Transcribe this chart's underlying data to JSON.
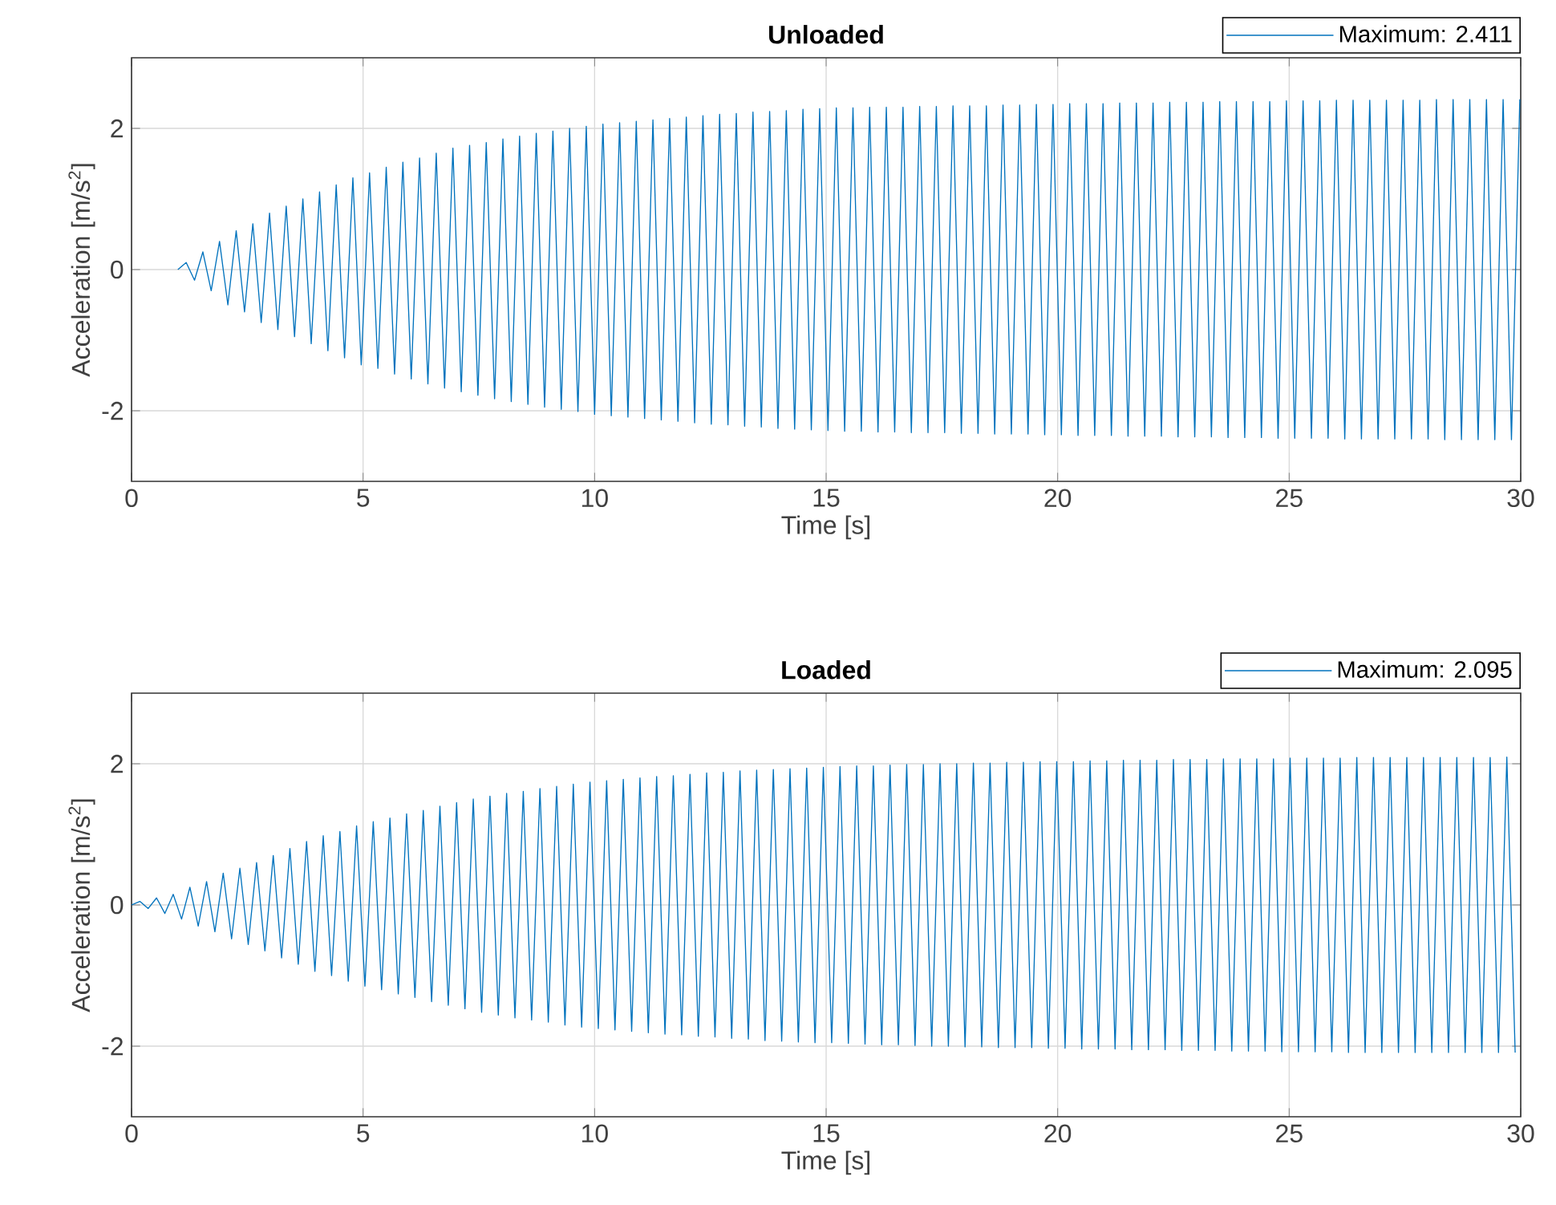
{
  "chart_data": [
    {
      "type": "line",
      "title": "Unloaded",
      "xlabel": "Time [s]",
      "ylabel": "Acceleration [m/s$^{2}$]",
      "xlim": [
        0,
        30
      ],
      "ylim": [
        -3,
        3
      ],
      "xticks": [
        0,
        5,
        10,
        15,
        20,
        25,
        30
      ],
      "yticks": [
        -2,
        0,
        2
      ],
      "grid": true,
      "legend": "top right",
      "line_style": "solid",
      "series": [
        {
          "name": "Maximum: 2.411",
          "color": "#0072bd",
          "x": [
            1,
            1.18,
            1.36,
            1.54,
            1.72,
            1.9,
            2.08,
            2.26,
            2.44,
            2.62,
            2.8,
            2.98,
            3.16,
            3.34,
            3.52,
            3.7,
            3.88,
            4.06,
            4.24,
            4.42,
            4.6,
            4.78,
            4.96,
            5.14,
            5.32,
            5.5,
            5.68,
            5.86,
            6.04,
            6.22,
            6.4,
            6.58,
            6.76,
            6.94,
            7.12,
            7.3,
            7.48,
            7.66,
            7.84,
            8.02,
            8.2,
            8.38,
            8.56,
            8.74,
            8.92,
            9.1,
            9.28,
            9.46,
            9.64,
            9.82,
            10,
            10.18,
            10.36,
            10.54,
            10.72,
            10.9,
            11.08,
            11.26,
            11.44,
            11.62,
            11.8,
            11.98,
            12.16,
            12.34,
            12.52,
            12.7,
            12.88,
            13.06,
            13.24,
            13.42,
            13.6,
            13.78,
            13.96,
            14.14,
            14.32,
            14.5,
            14.68,
            14.86,
            15.04,
            15.22,
            15.4,
            15.58,
            15.76,
            15.94,
            16.12,
            16.3,
            16.48,
            16.66,
            16.84,
            17.02,
            17.2,
            17.38,
            17.56,
            17.74,
            17.92,
            18.1,
            18.28,
            18.46,
            18.64,
            18.82,
            19,
            19.18,
            19.36,
            19.54,
            19.72,
            19.9,
            20.08,
            20.26,
            20.44,
            20.62,
            20.8,
            20.98,
            21.16,
            21.34,
            21.52,
            21.7,
            21.88,
            22.06,
            22.24,
            22.42,
            22.6,
            22.78,
            22.96,
            23.14,
            23.32,
            23.5,
            23.68,
            23.86,
            24.04,
            24.22,
            24.4,
            24.58,
            24.76,
            24.94,
            25.12,
            25.3,
            25.48,
            25.66,
            25.84,
            26.02,
            26.2,
            26.38,
            26.56,
            26.74,
            26.92,
            27.1,
            27.28,
            27.46,
            27.64,
            27.82,
            28,
            28.18,
            28.36,
            28.54,
            28.72,
            28.9,
            29.08,
            29.26,
            29.44,
            29.62,
            29.8,
            29.98
          ],
          "values": [
            0,
            0.1,
            -0.15,
            0.25,
            -0.3,
            0.4,
            -0.5,
            0.55,
            -0.6,
            0.65,
            -0.75,
            0.8,
            -0.85,
            0.9,
            -0.95,
            1,
            -1.05,
            1.1,
            -1.15,
            1.2,
            -1.25,
            1.3,
            -1.35,
            1.37,
            -1.4,
            1.45,
            -1.48,
            1.52,
            -1.55,
            1.58,
            -1.62,
            1.65,
            -1.68,
            1.72,
            -1.73,
            1.76,
            -1.78,
            1.8,
            -1.83,
            1.85,
            -1.87,
            1.89,
            -1.91,
            1.93,
            -1.95,
            1.96,
            -1.98,
            2,
            -2.01,
            2.03,
            -2.05,
            2.06,
            -2.07,
            2.08,
            -2.09,
            2.1,
            -2.11,
            2.12,
            -2.13,
            2.14,
            -2.15,
            2.16,
            -2.17,
            2.18,
            -2.19,
            2.2,
            -2.2,
            2.21,
            -2.22,
            2.23,
            -2.23,
            2.24,
            -2.25,
            2.25,
            -2.26,
            2.27,
            -2.27,
            2.28,
            -2.28,
            2.29,
            -2.29,
            2.29,
            -2.29,
            2.3,
            -2.3,
            2.3,
            -2.3,
            2.3,
            -2.31,
            2.31,
            -2.31,
            2.31,
            -2.31,
            2.32,
            -2.32,
            2.32,
            -2.32,
            2.32,
            -2.33,
            2.33,
            -2.33,
            2.33,
            -2.33,
            2.34,
            -2.34,
            2.34,
            -2.34,
            2.35,
            -2.35,
            2.35,
            -2.35,
            2.35,
            -2.35,
            2.36,
            -2.36,
            2.36,
            -2.36,
            2.36,
            -2.36,
            2.37,
            -2.37,
            2.37,
            -2.37,
            2.37,
            -2.37,
            2.38,
            -2.38,
            2.38,
            -2.38,
            2.38,
            -2.38,
            2.38,
            -2.39,
            2.39,
            -2.39,
            2.39,
            -2.39,
            2.39,
            -2.39,
            2.4,
            -2.4,
            2.4,
            -2.4,
            2.4,
            -2.4,
            2.4,
            -2.4,
            2.4,
            -2.4,
            2.4,
            -2.4,
            2.41,
            -2.41,
            2.41,
            -2.41,
            2.41,
            -2.41,
            2.41,
            -2.41,
            2.41,
            -2.41,
            2.411
          ]
        }
      ]
    },
    {
      "type": "line",
      "title": "Loaded",
      "xlabel": "Time [s]",
      "ylabel": "Acceleration [m/s$^{2}$]",
      "xlim": [
        0,
        30
      ],
      "ylim": [
        -3,
        3
      ],
      "xticks": [
        0,
        5,
        10,
        15,
        20,
        25,
        30
      ],
      "yticks": [
        -2,
        0,
        2
      ],
      "grid": true,
      "legend": "top right",
      "line_style": "solid",
      "series": [
        {
          "name": "Maximum: 2.095",
          "color": "#0072bd",
          "x": [
            0,
            0.18,
            0.36,
            0.54,
            0.72,
            0.9,
            1.08,
            1.26,
            1.44,
            1.62,
            1.8,
            1.98,
            2.16,
            2.34,
            2.52,
            2.7,
            2.88,
            3.06,
            3.24,
            3.42,
            3.6,
            3.78,
            3.96,
            4.14,
            4.32,
            4.5,
            4.68,
            4.86,
            5.04,
            5.22,
            5.4,
            5.58,
            5.76,
            5.94,
            6.12,
            6.3,
            6.48,
            6.66,
            6.84,
            7.02,
            7.2,
            7.38,
            7.56,
            7.74,
            7.92,
            8.1,
            8.28,
            8.46,
            8.64,
            8.82,
            9,
            9.18,
            9.36,
            9.54,
            9.72,
            9.9,
            10.08,
            10.26,
            10.44,
            10.62,
            10.8,
            10.98,
            11.16,
            11.34,
            11.52,
            11.7,
            11.88,
            12.06,
            12.24,
            12.42,
            12.6,
            12.78,
            12.96,
            13.14,
            13.32,
            13.5,
            13.68,
            13.86,
            14.04,
            14.22,
            14.4,
            14.58,
            14.76,
            14.94,
            15.12,
            15.3,
            15.48,
            15.66,
            15.84,
            16.02,
            16.2,
            16.38,
            16.56,
            16.74,
            16.92,
            17.1,
            17.28,
            17.46,
            17.64,
            17.82,
            18,
            18.18,
            18.36,
            18.54,
            18.72,
            18.9,
            19.08,
            19.26,
            19.44,
            19.62,
            19.8,
            19.98,
            20.16,
            20.34,
            20.52,
            20.7,
            20.88,
            21.06,
            21.24,
            21.42,
            21.6,
            21.78,
            21.96,
            22.14,
            22.32,
            22.5,
            22.68,
            22.86,
            23.04,
            23.22,
            23.4,
            23.58,
            23.76,
            23.94,
            24.12,
            24.3,
            24.48,
            24.66,
            24.84,
            25.02,
            25.2,
            25.38,
            25.56,
            25.74,
            25.92,
            26.1,
            26.28,
            26.46,
            26.64,
            26.82,
            27,
            27.18,
            27.36,
            27.54,
            27.72,
            27.9,
            28.08,
            28.26,
            28.44,
            28.62,
            28.8,
            28.98,
            29.16,
            29.34,
            29.52,
            29.7,
            29.88
          ],
          "values": [
            0,
            0.05,
            -0.05,
            0.1,
            -0.12,
            0.15,
            -0.2,
            0.25,
            -0.3,
            0.33,
            -0.38,
            0.45,
            -0.48,
            0.52,
            -0.56,
            0.6,
            -0.65,
            0.7,
            -0.75,
            0.8,
            -0.84,
            0.9,
            -0.94,
            0.98,
            -1,
            1.04,
            -1.08,
            1.12,
            -1.15,
            1.18,
            -1.2,
            1.23,
            -1.26,
            1.29,
            -1.31,
            1.34,
            -1.37,
            1.4,
            -1.42,
            1.45,
            -1.47,
            1.5,
            -1.52,
            1.54,
            -1.56,
            1.58,
            -1.6,
            1.61,
            -1.63,
            1.65,
            -1.66,
            1.68,
            -1.7,
            1.71,
            -1.73,
            1.74,
            -1.75,
            1.76,
            -1.77,
            1.78,
            -1.79,
            1.8,
            -1.81,
            1.82,
            -1.83,
            1.83,
            -1.84,
            1.85,
            -1.86,
            1.87,
            -1.87,
            1.88,
            -1.89,
            1.9,
            -1.9,
            1.91,
            -1.92,
            1.92,
            -1.93,
            1.93,
            -1.94,
            1.94,
            -1.95,
            1.95,
            -1.95,
            1.96,
            -1.96,
            1.97,
            -1.97,
            1.97,
            -1.98,
            1.98,
            -1.98,
            1.99,
            -1.99,
            1.99,
            -2,
            2,
            -2,
            2,
            -2.01,
            2.01,
            -2.01,
            2.01,
            -2.02,
            2.02,
            -2.02,
            2.02,
            -2.02,
            2.03,
            -2.03,
            2.03,
            -2.03,
            2.03,
            -2.04,
            2.04,
            -2.04,
            2.04,
            -2.04,
            2.05,
            -2.05,
            2.05,
            -2.05,
            2.05,
            -2.05,
            2.06,
            -2.06,
            2.06,
            -2.06,
            2.06,
            -2.06,
            2.07,
            -2.07,
            2.07,
            -2.07,
            2.07,
            -2.07,
            2.07,
            -2.08,
            2.08,
            -2.08,
            2.08,
            -2.08,
            2.08,
            -2.08,
            2.08,
            -2.09,
            2.09,
            -2.09,
            2.09,
            -2.09,
            2.09,
            -2.09,
            2.09,
            -2.09,
            2.09,
            -2.09,
            2.09,
            -2.09,
            2.09,
            -2.09,
            2.09,
            -2.09,
            2.09,
            -2.09,
            2.095,
            -2.09
          ]
        }
      ]
    }
  ]
}
